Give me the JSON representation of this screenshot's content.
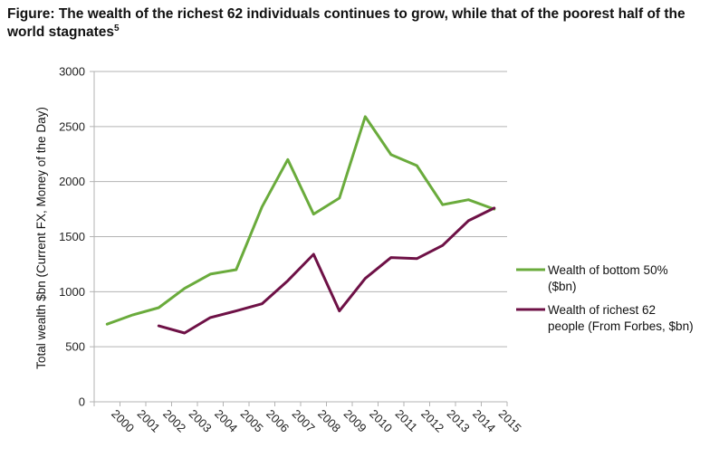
{
  "title": {
    "text": "Figure: The wealth of the richest 62 individuals continues to grow, while that of the poorest half of the world stagnates",
    "footnote": "5"
  },
  "chart_data": {
    "type": "line",
    "x": [
      "2000",
      "2001",
      "2002",
      "2003",
      "2004",
      "2005",
      "2006",
      "2007",
      "2008",
      "2009",
      "2010",
      "2011",
      "2012",
      "2013",
      "2014",
      "2015"
    ],
    "ylabel": "Total wealth $bn (Current FX, Money of the Day)",
    "xlabel": "",
    "ylim": [
      0,
      3000
    ],
    "yticks": [
      0,
      500,
      1000,
      1500,
      2000,
      2500,
      3000
    ],
    "grid": true,
    "legend_position": "right",
    "series": [
      {
        "name": "Wealth of bottom 50% ($bn)",
        "legend_lines": [
          "Wealth of bottom 50%",
          "($bn)"
        ],
        "color": "#6aab3c",
        "values": [
          705,
          790,
          855,
          1030,
          1160,
          1200,
          1770,
          2200,
          1705,
          1850,
          2590,
          2245,
          2145,
          1790,
          1835,
          1750
        ]
      },
      {
        "name": "Wealth of richest 62 people (From Forbes, $bn)",
        "legend_lines": [
          "Wealth of richest 62",
          "people (From Forbes, $bn)"
        ],
        "color": "#6e1146",
        "values": [
          null,
          null,
          690,
          625,
          765,
          825,
          890,
          1100,
          1340,
          825,
          1120,
          1310,
          1300,
          1420,
          1645,
          1760
        ]
      }
    ]
  }
}
